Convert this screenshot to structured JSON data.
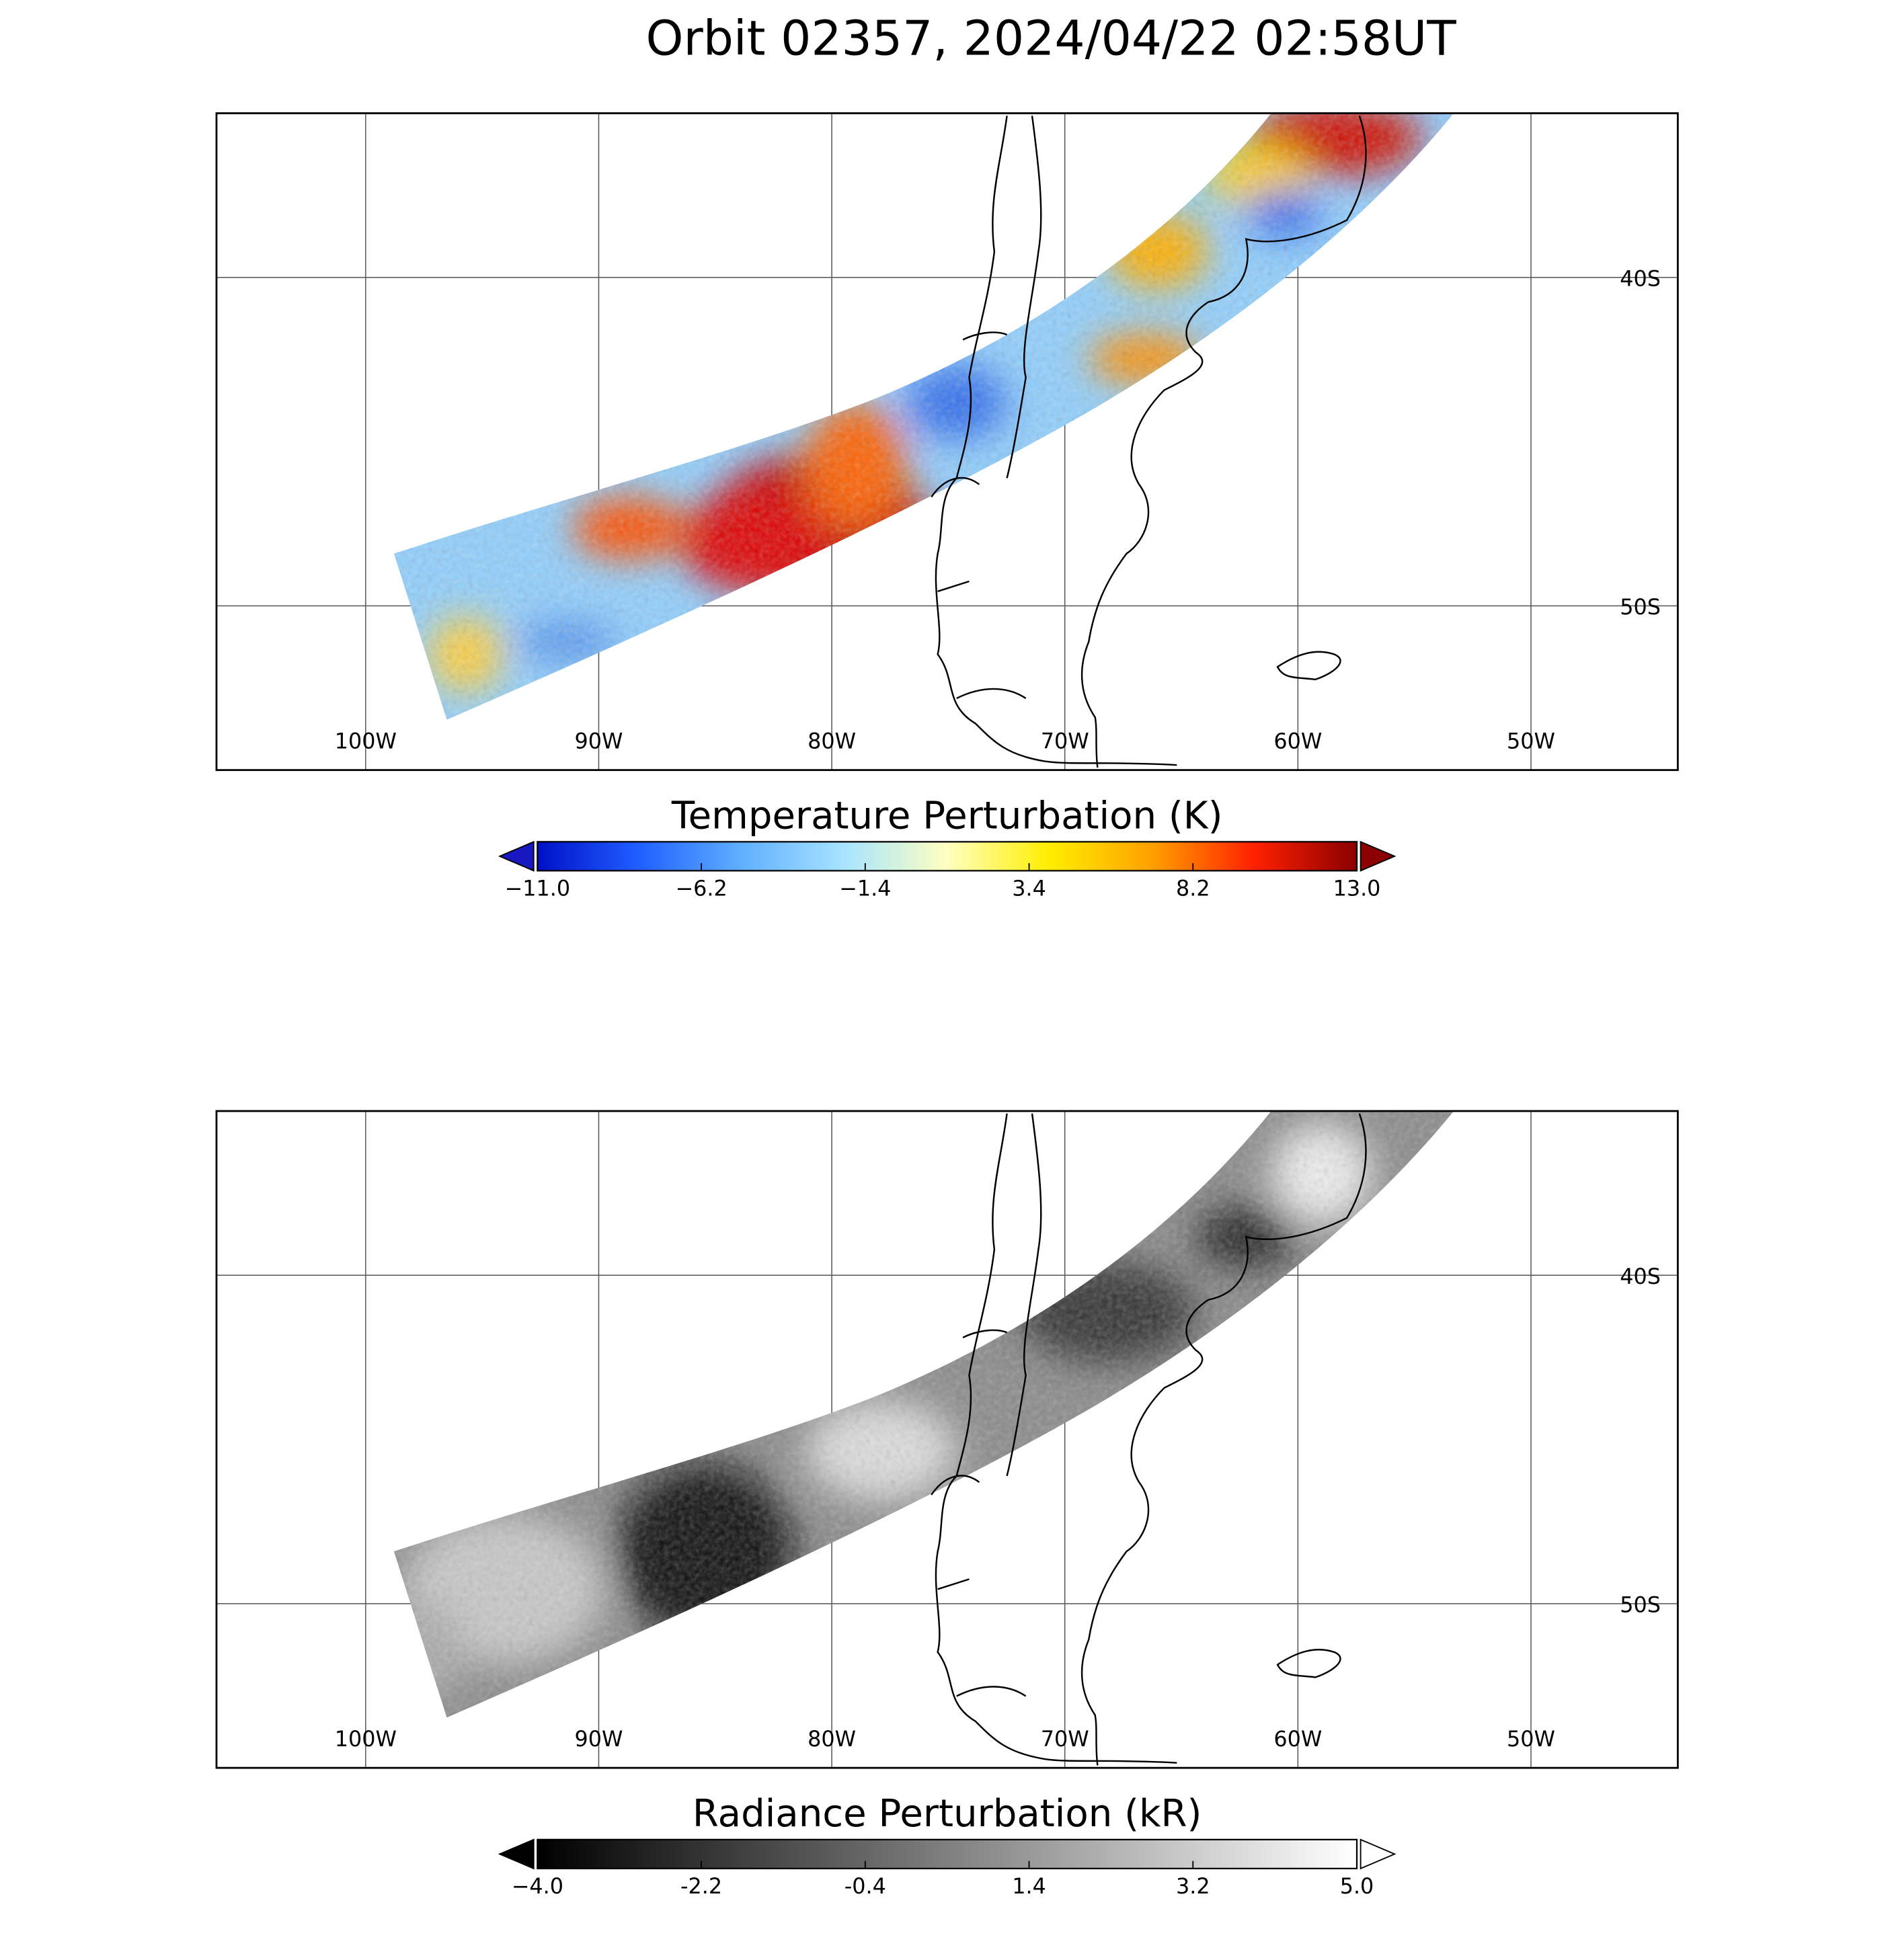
{
  "title": "Orbit 02357, 2024/04/22 02:58UT",
  "map": {
    "lon_range": [
      -106.4,
      -43.7
    ],
    "lat_range": [
      -55,
      -35
    ],
    "grid": true,
    "lon_ticks": [
      {
        "value": -100,
        "label": "100W"
      },
      {
        "value": -90,
        "label": "90W"
      },
      {
        "value": -80,
        "label": "80W"
      },
      {
        "value": -70,
        "label": "70W"
      },
      {
        "value": -60,
        "label": "60W"
      },
      {
        "value": -50,
        "label": "50W"
      }
    ],
    "lat_ticks": [
      {
        "value": -40,
        "label": "40S"
      },
      {
        "value": -50,
        "label": "50S"
      }
    ]
  },
  "panels": [
    {
      "colorbar": {
        "title": "Temperature Perturbation (K)",
        "range": [
          -11,
          13
        ],
        "ticks": [
          {
            "value": -11,
            "label": "−11.0"
          },
          {
            "value": -6.2,
            "label": "−6.2"
          },
          {
            "value": -1.4,
            "label": "−1.4"
          },
          3.4,
          8.2,
          {
            "value": 13,
            "label": "13.0"
          }
        ],
        "colors": [
          "#0010c8",
          "#2060ff",
          "#60b0ff",
          "#a8e4ff",
          "#ffffc0",
          "#ffee00",
          "#ffa000",
          "#ff2000",
          "#8b0000"
        ],
        "extend_colors": [
          "#1818c0",
          "#8b0000"
        ]
      }
    },
    {
      "colorbar": {
        "title": "Radiance Perturbation (kR)",
        "range": [
          -4,
          5
        ],
        "ticks": [
          {
            "value": -4,
            "label": "−4.0"
          },
          -2.2,
          -0.4,
          1.4,
          3.2,
          {
            "value": 5,
            "label": "5.0"
          }
        ],
        "colors": [
          "#000000",
          "#ffffff"
        ],
        "extend_colors": [
          "#000000",
          "#ffffff"
        ]
      }
    }
  ]
}
